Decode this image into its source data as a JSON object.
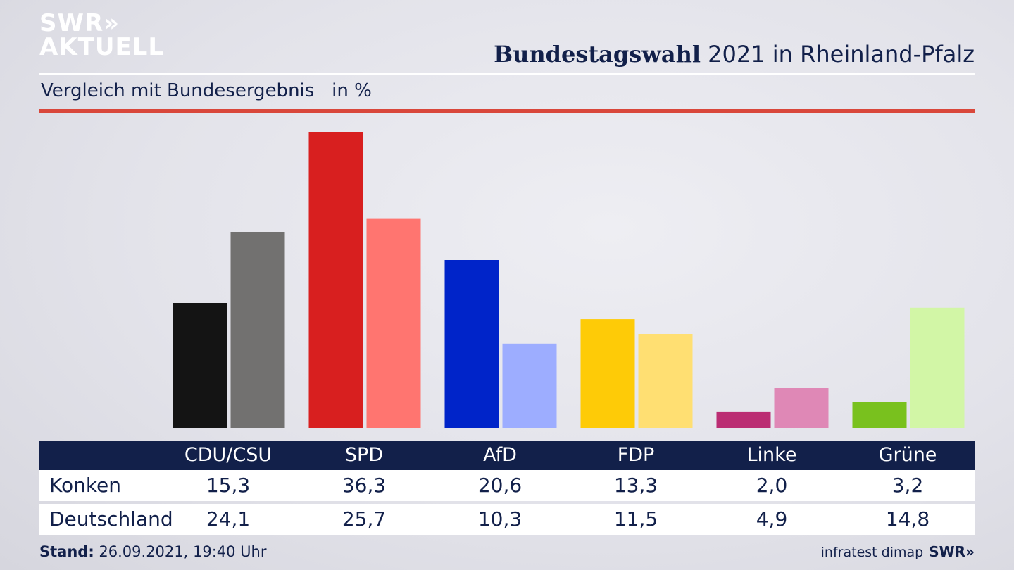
{
  "brand": {
    "logo_line1": "SWR»",
    "logo_line2": "AKTUELL",
    "footer_logo": "SWR»"
  },
  "header": {
    "title_bold": "Bundestagswahl",
    "title_rest": " 2021 in Rheinland-Pfalz",
    "subtitle": "Vergleich mit Bundesergebnis   in %"
  },
  "table": {
    "parties": [
      "CDU/CSU",
      "SPD",
      "AfD",
      "FDP",
      "Linke",
      "Grüne"
    ],
    "rows": [
      {
        "label": "Konken",
        "values": [
          "15,3",
          "36,3",
          "20,6",
          "13,3",
          "2,0",
          "3,2"
        ]
      },
      {
        "label": "Deutschland",
        "values": [
          "24,1",
          "25,7",
          "10,3",
          "11,5",
          "4,9",
          "14,8"
        ]
      }
    ]
  },
  "footer": {
    "stand_label": "Stand:",
    "stand_value": " 26.09.2021, 19:40 Uhr",
    "source": "infratest dimap"
  },
  "chart_data": {
    "type": "bar",
    "categories": [
      "CDU/CSU",
      "SPD",
      "AfD",
      "FDP",
      "Linke",
      "Grüne"
    ],
    "series": [
      {
        "name": "Konken",
        "values": [
          15.3,
          36.3,
          20.6,
          13.3,
          2.0,
          3.2
        ],
        "colors": [
          "#141414",
          "#d81f1f",
          "#0024c9",
          "#fecb07",
          "#bb2d73",
          "#79c11e"
        ]
      },
      {
        "name": "Deutschland",
        "values": [
          24.1,
          25.7,
          10.3,
          11.5,
          4.9,
          14.8
        ],
        "colors": [
          "#727170",
          "#ff7570",
          "#9dadff",
          "#ffdf72",
          "#df88b6",
          "#d2f6a6"
        ]
      }
    ],
    "ylim": [
      0,
      36.3
    ],
    "grid": false,
    "legend": "none"
  }
}
